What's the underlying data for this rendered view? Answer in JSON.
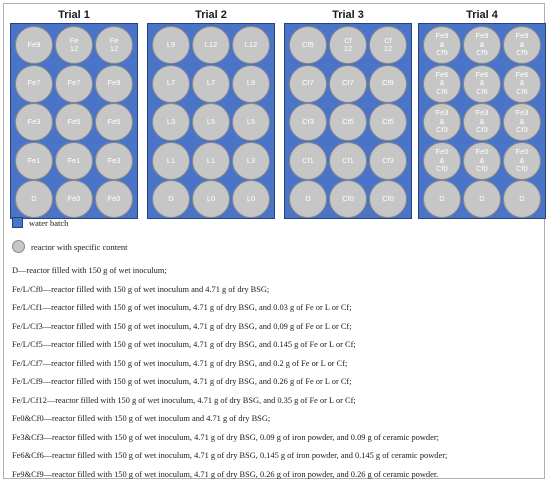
{
  "trials": [
    {
      "title": "Trial 1",
      "rows": [
        [
          "Fe9",
          "Fe\n12",
          "Fe\n12"
        ],
        [
          "Fe7",
          "Fe7",
          "Fe9"
        ],
        [
          "Fe3",
          "Fe5",
          "Fe5"
        ],
        [
          "Fe1",
          "Fe1",
          "Fe3"
        ],
        [
          "D",
          "Fe0",
          "Fe0"
        ]
      ]
    },
    {
      "title": "Trial 2",
      "rows": [
        [
          "L9",
          "L12",
          "L12"
        ],
        [
          "L7",
          "L7",
          "L9"
        ],
        [
          "L3",
          "L5",
          "L5"
        ],
        [
          "L1",
          "L1",
          "L3"
        ],
        [
          "D",
          "L0",
          "L0"
        ]
      ]
    },
    {
      "title": "Trial 3",
      "rows": [
        [
          "Cf9",
          "Cf\n12",
          "Cf\n12"
        ],
        [
          "Cf7",
          "Cf7",
          "Cf9"
        ],
        [
          "Cf3",
          "Cf5",
          "Cf5"
        ],
        [
          "Cf1",
          "Cf1",
          "Cf3"
        ],
        [
          "D",
          "Cf0",
          "Cf0"
        ]
      ]
    },
    {
      "title": "Trial 4",
      "rows": [
        [
          "Fe9\n&\nCf9",
          "Fe9\n&\nCf9",
          "Fe9\n&\nCf9"
        ],
        [
          "Fe6\n&\nCf6",
          "Fe6\n&\nCf6",
          "Fe6\n&\nCf6"
        ],
        [
          "Fe3\n&\nCf3",
          "Fe3\n&\nCf3",
          "Fe3\n&\nCf3"
        ],
        [
          "Fe0\n&\nCf0",
          "Fe0\n&\nCf0",
          "Fe0\n&\nCf0"
        ],
        [
          "D",
          "D",
          "D"
        ]
      ]
    }
  ],
  "legend": {
    "water_batch": "water batch",
    "reactor": "reactor with specific content"
  },
  "descriptions": [
    "D—reactor filled with 150 g of wet inoculum;",
    "Fe/L/Cf0—reactor filled with 150 g of wet inoculum and 4.71 g of dry BSG;",
    "Fe/L/Cf1—reactor filled with 150 g of wet inoculum, 4.71 g of dry BSG, and 0.03 g of Fe or L or Cf;",
    "Fe/L/Cf3—reactor filled with 150 g of wet inoculum, 4.71 g of dry BSG, and 0.09 g of Fe or L or Cf;",
    "Fe/L/Cf5—reactor filled with 150 g of wet inoculum, 4.71 g of dry BSG, and 0.145 g of Fe or L or Cf;",
    "Fe/L/Cf7—reactor filled with 150 g of wet inoculum, 4.71 g of dry BSG, and 0.2 g of Fe or L or Cf;",
    "Fe/L/Cf9—reactor filled with 150 g of wet inoculum, 4.71 g of dry BSG, and 0.26 g of Fe or L or Cf;",
    "Fe/L/Cf12—reactor filled with 150 g of wet inoculum, 4.71 g of dry BSG, and 0.35 g of Fe or L or Cf;",
    "Fe0&Cf0—reactor filled with 150 g of wet inoculum and 4.71 g of dry BSG;",
    "Fe3&Cf3—reactor filled with 150 g of wet inoculum, 4.71 g of dry BSG, 0.09 g of iron powder, and 0.09 g of ceramic powder;",
    "Fe6&Cf6—reactor filled with 150 g of wet inoculum, 4.71 g of dry BSG, 0.145 g of iron powder, and 0.145 g of ceramic powder;",
    "Fe9&Cf9—reactor filled with 150 g of wet inoculum, 4.71 g of dry BSG, 0.26 g of iron powder, and 0.26 g of ceramic powder."
  ]
}
